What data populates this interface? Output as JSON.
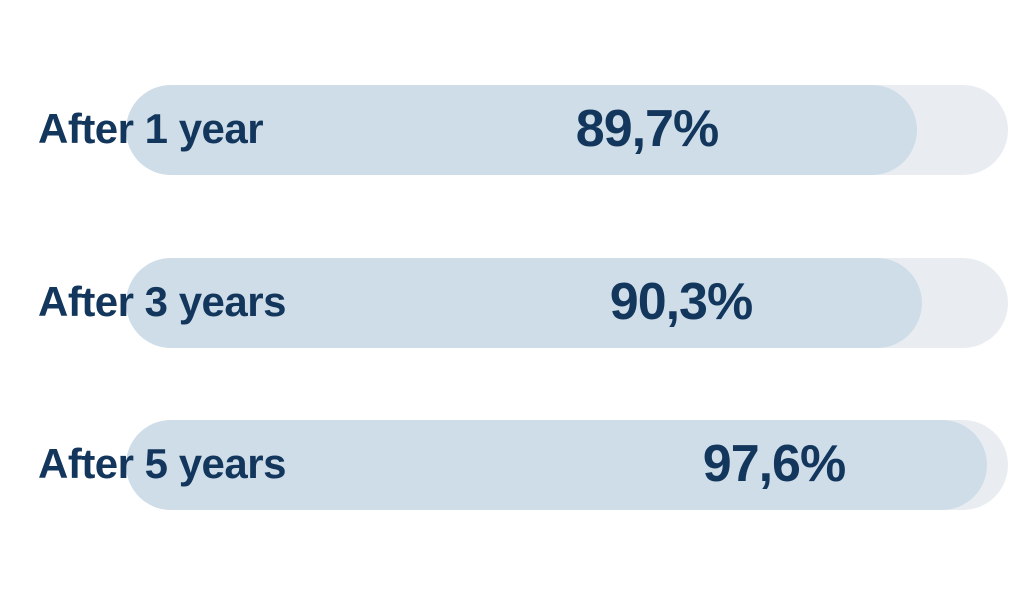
{
  "chart_data": {
    "type": "bar",
    "orientation": "horizontal",
    "title": "",
    "xlabel": "",
    "ylabel": "",
    "xlim": [
      0,
      100
    ],
    "grid": false,
    "legend": false,
    "categories": [
      "After 1 year",
      "After 3 years",
      "After 5 years"
    ],
    "values": [
      89.7,
      90.3,
      97.6
    ],
    "value_labels": [
      "89,7%",
      "90,3%",
      "97,6%"
    ],
    "colors": {
      "bar_fill": "#cfdde9",
      "bar_track": "#e9edf2",
      "text": "#13365c",
      "background": "#ffffff"
    }
  },
  "bars": [
    {
      "label": "After 1 year",
      "display_value": "89,7%",
      "value": 89.7
    },
    {
      "label": "After 3 years",
      "display_value": "90,3%",
      "value": 90.3
    },
    {
      "label": "After 5 years",
      "display_value": "97,6%",
      "value": 97.6
    }
  ]
}
